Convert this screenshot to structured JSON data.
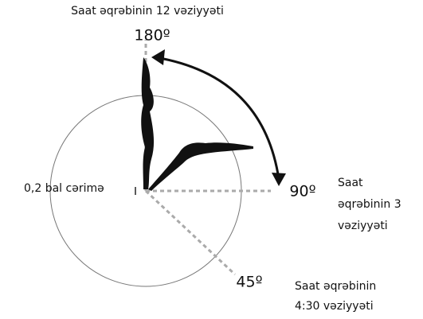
{
  "labels": {
    "top": "Saat əqrəbinin 12 vəziyyəti",
    "deg180": "180º",
    "deg90": "90º",
    "deg45": "45º",
    "penalty": "0,2 bal cərimə",
    "right": [
      "Saat",
      "əqrəbinin 3",
      "vəziyyəti"
    ],
    "bottom_right": [
      "Saat əqrəbinin",
      "4:30 vəziyyəti"
    ]
  }
}
